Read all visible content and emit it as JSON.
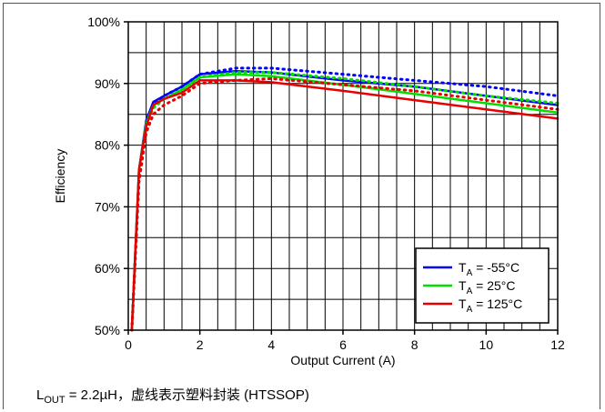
{
  "chart_data": {
    "type": "line",
    "xlabel": "Output Current (A)",
    "ylabel": "Efficiency",
    "xlim": [
      0,
      12
    ],
    "ylim": [
      50,
      100
    ],
    "xticks": [
      0,
      2,
      4,
      6,
      8,
      10,
      12
    ],
    "yticks": [
      50,
      60,
      70,
      80,
      90,
      100
    ],
    "x_tick_labels": [
      "0",
      "2",
      "4",
      "6",
      "8",
      "10",
      "12"
    ],
    "y_tick_labels": [
      "50%",
      "60%",
      "70%",
      "80%",
      "90%",
      "100%"
    ],
    "x_minor_step": 0.5,
    "grid": true,
    "legend_position": "bottom-right",
    "legend": [
      {
        "base": "T",
        "sub": "A",
        "suffix": " = -55°C"
      },
      {
        "base": "T",
        "sub": "A",
        "suffix": " = 25°C"
      },
      {
        "base": "T",
        "sub": "A",
        "suffix": " = 125°C"
      }
    ],
    "series": [
      {
        "name": "TA = -55°C",
        "variant": "solid",
        "color": "#0000ff",
        "x": [
          0.1,
          0.3,
          0.5,
          0.7,
          1.0,
          1.5,
          2.0,
          3.0,
          4.0,
          6.0,
          8.0,
          10.0,
          12.0
        ],
        "y": [
          50,
          76,
          84,
          87,
          88,
          89.5,
          91.5,
          92,
          91.8,
          90.5,
          89.5,
          88,
          86.5
        ]
      },
      {
        "name": "TA = -55°C",
        "variant": "dotted",
        "color": "#0000ff",
        "x": [
          0.1,
          0.3,
          0.5,
          0.7,
          1.0,
          1.5,
          2.0,
          3.0,
          4.0,
          6.0,
          8.0,
          10.0,
          12.0
        ],
        "y": [
          50,
          75,
          83,
          86.5,
          88,
          89.5,
          91.5,
          92.5,
          92.5,
          91.5,
          90.5,
          89.5,
          88
        ]
      },
      {
        "name": "TA = 25°C",
        "variant": "solid",
        "color": "#00e000",
        "x": [
          0.1,
          0.3,
          0.5,
          0.7,
          1.0,
          1.5,
          2.0,
          3.0,
          4.0,
          6.0,
          8.0,
          10.0,
          12.0
        ],
        "y": [
          50,
          76,
          83.5,
          86.5,
          87.5,
          89,
          91,
          91.5,
          91.2,
          89.8,
          88.3,
          86.8,
          85.3
        ]
      },
      {
        "name": "TA = 25°C",
        "variant": "dotted",
        "color": "#00e000",
        "x": [
          0.1,
          0.3,
          0.5,
          0.7,
          1.0,
          1.5,
          2.0,
          3.0,
          4.0,
          6.0,
          8.0,
          10.0,
          12.0
        ],
        "y": [
          50,
          75,
          83,
          86,
          87.5,
          89,
          91,
          91.8,
          91.8,
          90.8,
          89.5,
          88,
          86.8
        ]
      },
      {
        "name": "TA = 125°C",
        "variant": "solid",
        "color": "#e60000",
        "x": [
          0.1,
          0.3,
          0.5,
          0.7,
          1.0,
          1.5,
          2.0,
          3.0,
          4.0,
          6.0,
          8.0,
          10.0,
          12.0
        ],
        "y": [
          50,
          76,
          83,
          86.5,
          87.5,
          88.5,
          90.5,
          90.5,
          90.2,
          88.8,
          87.3,
          85.8,
          84.3
        ]
      },
      {
        "name": "TA = 125°C",
        "variant": "dotted",
        "color": "#e60000",
        "x": [
          0.1,
          0.3,
          0.5,
          0.7,
          1.0,
          1.5,
          2.0,
          3.0,
          4.0,
          6.0,
          8.0,
          10.0,
          12.0
        ],
        "y": [
          50,
          74,
          82,
          85,
          86.5,
          88,
          90,
          90.5,
          90.8,
          89.8,
          88.8,
          87.3,
          85.8
        ]
      }
    ]
  },
  "caption": {
    "prefix": "L",
    "sub": "OUT",
    "text": " = 2.2µH，虚线表示塑料封装 (HTSSOP)"
  }
}
